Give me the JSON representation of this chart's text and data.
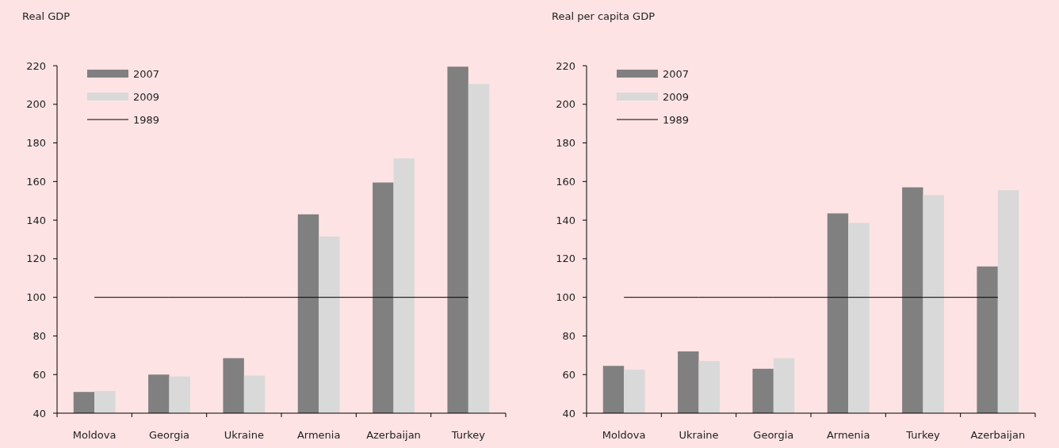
{
  "chart_data": [
    {
      "type": "bar",
      "title": "Real GDP",
      "categories": [
        "Moldova",
        "Georgia",
        "Ukraine",
        "Armenia",
        "Azerbaijan",
        "Turkey"
      ],
      "series": [
        {
          "name": "2007",
          "color": "#808080",
          "values": [
            51,
            60,
            68.5,
            143,
            159.5,
            219.5
          ]
        },
        {
          "name": "2009",
          "color": "#d9d9d9",
          "values": [
            51.5,
            59,
            59.5,
            131.5,
            172,
            210.5
          ]
        },
        {
          "name": "1989",
          "type": "line",
          "color": "#000000",
          "values": [
            100,
            100,
            100,
            100,
            100,
            100
          ]
        }
      ],
      "ylim": [
        40,
        220
      ],
      "yticks": [
        40,
        60,
        80,
        100,
        120,
        140,
        160,
        180,
        200,
        220
      ],
      "legend": "top left",
      "grid": false
    },
    {
      "type": "bar",
      "title": "Real per capita GDP",
      "categories": [
        "Moldova",
        "Ukraine",
        "Georgia",
        "Armenia",
        "Turkey",
        "Azerbaijan"
      ],
      "series": [
        {
          "name": "2007",
          "color": "#808080",
          "values": [
            64.5,
            72,
            63,
            143.5,
            157,
            116
          ]
        },
        {
          "name": "2009",
          "color": "#d9d9d9",
          "values": [
            62.5,
            67,
            68.5,
            138.5,
            153,
            155.5
          ]
        },
        {
          "name": "1989",
          "type": "line",
          "color": "#000000",
          "values": [
            100,
            100,
            100,
            100,
            100,
            100
          ]
        }
      ],
      "ylim": [
        40,
        220
      ],
      "yticks": [
        40,
        60,
        80,
        100,
        120,
        140,
        160,
        180,
        200,
        220
      ],
      "legend": "top left",
      "grid": false
    }
  ]
}
